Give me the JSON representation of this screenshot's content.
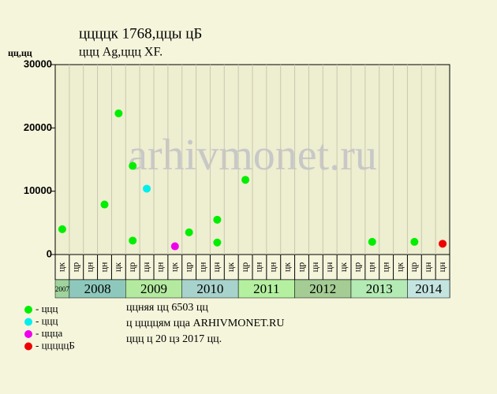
{
  "chart_data": {
    "type": "scatter",
    "title": "ццццк 1768,ццы цБ",
    "subtitle": "ццц Ag,ццц XF.",
    "y_label": "цц,цц",
    "watermark": "arhivmonet.ru",
    "categories": [
      "цк",
      "цр",
      "цн",
      "цн",
      "цк",
      "цр",
      "цн",
      "цн",
      "цк",
      "цр",
      "цн",
      "цн",
      "цк",
      "цр",
      "цн",
      "цн",
      "цк",
      "цр",
      "цн",
      "цн",
      "цк",
      "цр",
      "цн",
      "цн",
      "цк",
      "цр",
      "цн",
      "цн"
    ],
    "years": [
      "2007",
      "2008",
      "2009",
      "2010",
      "2011",
      "2012",
      "2013",
      "2014"
    ],
    "year_colors": [
      "#9fd49f",
      "#8ec8bc",
      "#b4eaa0",
      "#a8d2cc",
      "#b4f0a0",
      "#a4cc94",
      "#b4eab4",
      "#c4e4e0"
    ],
    "ylim": [
      0,
      30000
    ],
    "yticks": [
      0,
      10000,
      20000,
      30000
    ],
    "grid": true,
    "series": [
      {
        "name": "- ццц",
        "color": "#00ee00",
        "x": [
          0,
          3,
          4,
          5,
          5,
          9,
          11,
          11,
          13,
          22,
          25
        ],
        "values": [
          4000,
          7900,
          22300,
          2200,
          14000,
          3500,
          5500,
          1900,
          11800,
          2000,
          2000
        ]
      },
      {
        "name": "- ццц",
        "color": "#00eeee",
        "x": [
          6
        ],
        "values": [
          10400
        ]
      },
      {
        "name": "- ццца",
        "color": "#ee00ee",
        "x": [
          8
        ],
        "values": [
          1300
        ]
      },
      {
        "name": "- цццццБ",
        "color": "#ee0000",
        "x": [
          27
        ],
        "values": [
          1700
        ]
      }
    ],
    "notes": [
      "ццняя цц 6503 цц",
      "ц ццццям цца ARHIVMONET.RU",
      "ццц ц 20 цз 2017 цц."
    ]
  }
}
